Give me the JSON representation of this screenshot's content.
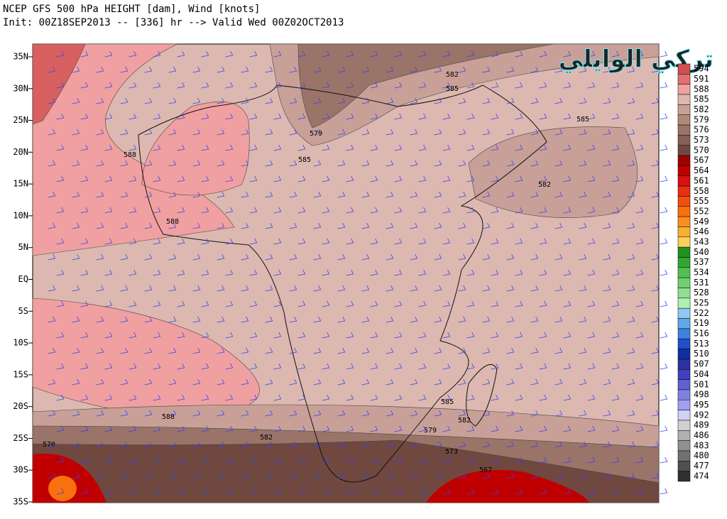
{
  "header": {
    "title": "NCEP GFS 500 hPa HEIGHT [dam], Wind [knots]",
    "subtitle": "Init: 00Z18SEP2013 -- [336] hr --> Valid Wed 00Z02OCT2013"
  },
  "watermark": "تركي الوايلي",
  "lat_labels": [
    "35N",
    "30N",
    "25N",
    "20N",
    "15N",
    "10N",
    "5N",
    "EQ",
    "5S",
    "10S",
    "15S",
    "20S",
    "25S",
    "30S",
    "35S"
  ],
  "contour_labels": [
    "582",
    "585",
    "579",
    "585",
    "588",
    "588",
    "585",
    "582",
    "585",
    "582",
    "579",
    "573",
    "567",
    "588",
    "582",
    "570"
  ],
  "colorbar": [
    {
      "label": "594",
      "color": "#d05050"
    },
    {
      "label": "591",
      "color": "#e07070"
    },
    {
      "label": "588",
      "color": "#f0a0a0"
    },
    {
      "label": "585",
      "color": "#dcb8b0"
    },
    {
      "label": "582",
      "color": "#c8a098"
    },
    {
      "label": "579",
      "color": "#b08878"
    },
    {
      "label": "576",
      "color": "#9a7468"
    },
    {
      "label": "573",
      "color": "#886058"
    },
    {
      "label": "570",
      "color": "#704840"
    },
    {
      "label": "567",
      "color": "#a00000"
    },
    {
      "label": "564",
      "color": "#c00000"
    },
    {
      "label": "561",
      "color": "#d81010"
    },
    {
      "label": "558",
      "color": "#e83010"
    },
    {
      "label": "555",
      "color": "#f05010"
    },
    {
      "label": "552",
      "color": "#f87010"
    },
    {
      "label": "549",
      "color": "#f89020"
    },
    {
      "label": "546",
      "color": "#f8b030"
    },
    {
      "label": "543",
      "color": "#f8d060"
    },
    {
      "label": "540",
      "color": "#209020"
    },
    {
      "label": "537",
      "color": "#30a830"
    },
    {
      "label": "534",
      "color": "#50c050"
    },
    {
      "label": "531",
      "color": "#70d070"
    },
    {
      "label": "528",
      "color": "#90e090"
    },
    {
      "label": "525",
      "color": "#b0f0b0"
    },
    {
      "label": "522",
      "color": "#90c8f0"
    },
    {
      "label": "519",
      "color": "#60a8e8"
    },
    {
      "label": "516",
      "color": "#4080e0"
    },
    {
      "label": "513",
      "color": "#2050c8"
    },
    {
      "label": "510",
      "color": "#1030a0"
    },
    {
      "label": "507",
      "color": "#3030a0"
    },
    {
      "label": "504",
      "color": "#4040c0"
    },
    {
      "label": "501",
      "color": "#6060d0"
    },
    {
      "label": "498",
      "color": "#8080e0"
    },
    {
      "label": "495",
      "color": "#a0a0f0"
    },
    {
      "label": "492",
      "color": "#d0d0f8"
    },
    {
      "label": "489",
      "color": "#d0d0d0"
    },
    {
      "label": "486",
      "color": "#b0b0b0"
    },
    {
      "label": "483",
      "color": "#909090"
    },
    {
      "label": "480",
      "color": "#707070"
    },
    {
      "label": "477",
      "color": "#505050"
    },
    {
      "label": "474",
      "color": "#303030"
    }
  ]
}
